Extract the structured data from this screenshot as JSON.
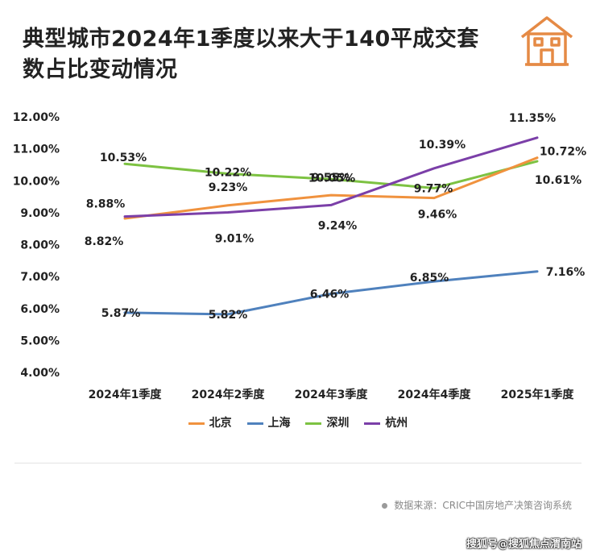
{
  "title": "典型城市2024年1季度以来大于140平成交套数占比变动情况",
  "source": "数据来源：CRIC中国房地产决策咨询系统",
  "watermark": "搜狐号@搜狐焦点渭南站",
  "icon": "house-icon",
  "chart_data": {
    "type": "line",
    "title": "典型城市2024年1季度以来大于140平成交套数占比变动情况",
    "xlabel": "",
    "ylabel": "",
    "categories": [
      "2024年1季度",
      "2024年2季度",
      "2024年3季度",
      "2024年4季度",
      "2025年1季度"
    ],
    "ylim": [
      4,
      12
    ],
    "yticks": [
      "4.00%",
      "5.00%",
      "6.00%",
      "7.00%",
      "8.00%",
      "9.00%",
      "10.00%",
      "11.00%",
      "12.00%"
    ],
    "legend_position": "bottom",
    "series": [
      {
        "name": "北京",
        "color": "#F0923E",
        "values": [
          8.82,
          9.23,
          9.55,
          9.46,
          10.72
        ],
        "labels": [
          "8.82%",
          "9.23%",
          "9.55%",
          "9.46%",
          "10.72%"
        ]
      },
      {
        "name": "上海",
        "color": "#4F81BD",
        "values": [
          5.87,
          5.82,
          6.46,
          6.85,
          7.16
        ],
        "labels": [
          "5.87%",
          "5.82%",
          "6.46%",
          "6.85%",
          "7.16%"
        ]
      },
      {
        "name": "深圳",
        "color": "#7DC242",
        "values": [
          10.53,
          10.22,
          10.05,
          9.77,
          10.61
        ],
        "labels": [
          "10.53%",
          "10.22%",
          "10.05%",
          "9.77%",
          "10.61%"
        ]
      },
      {
        "name": "杭州",
        "color": "#7B3FA8",
        "values": [
          8.88,
          9.01,
          9.24,
          10.39,
          11.35
        ],
        "labels": [
          "8.88%",
          "9.01%",
          "9.24%",
          "10.39%",
          "11.35%"
        ]
      }
    ]
  }
}
